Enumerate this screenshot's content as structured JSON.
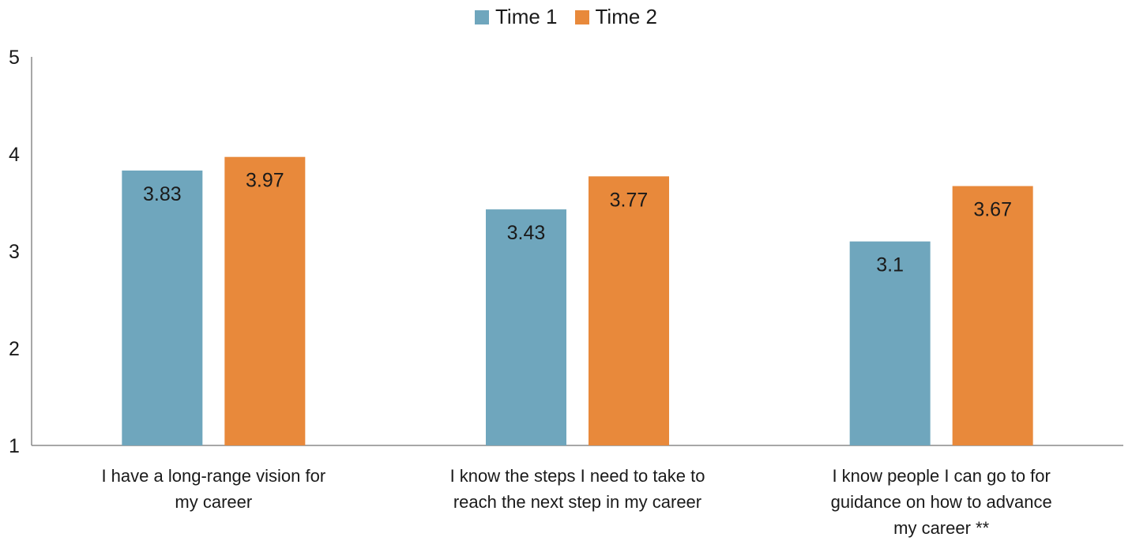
{
  "chart_data": {
    "type": "bar",
    "categories": [
      "I have a long-range vision for my career",
      "I know the steps I need to take to reach the next step in my career",
      "I know people I can go to for guidance on how to advance my career **"
    ],
    "category_lines": [
      [
        "I have a long-range vision for",
        "my career"
      ],
      [
        "I know the steps I need to take to",
        "reach the next step in my career"
      ],
      [
        "I know people I can go to for",
        "guidance on how to advance",
        "my career **"
      ]
    ],
    "series": [
      {
        "name": "Time 1",
        "values": [
          3.83,
          3.43,
          3.1
        ],
        "labels": [
          "3.83",
          "3.43",
          "3.1"
        ],
        "color": "#6fa6bd"
      },
      {
        "name": "Time 2",
        "values": [
          3.97,
          3.77,
          3.67
        ],
        "labels": [
          "3.97",
          "3.77",
          "3.67"
        ],
        "color": "#e8893b"
      }
    ],
    "yticks": [
      "1",
      "2",
      "3",
      "4",
      "5"
    ],
    "ylim": [
      1,
      5
    ],
    "grid": false,
    "legend": "top-center",
    "title": "",
    "xlabel": "",
    "ylabel": ""
  }
}
